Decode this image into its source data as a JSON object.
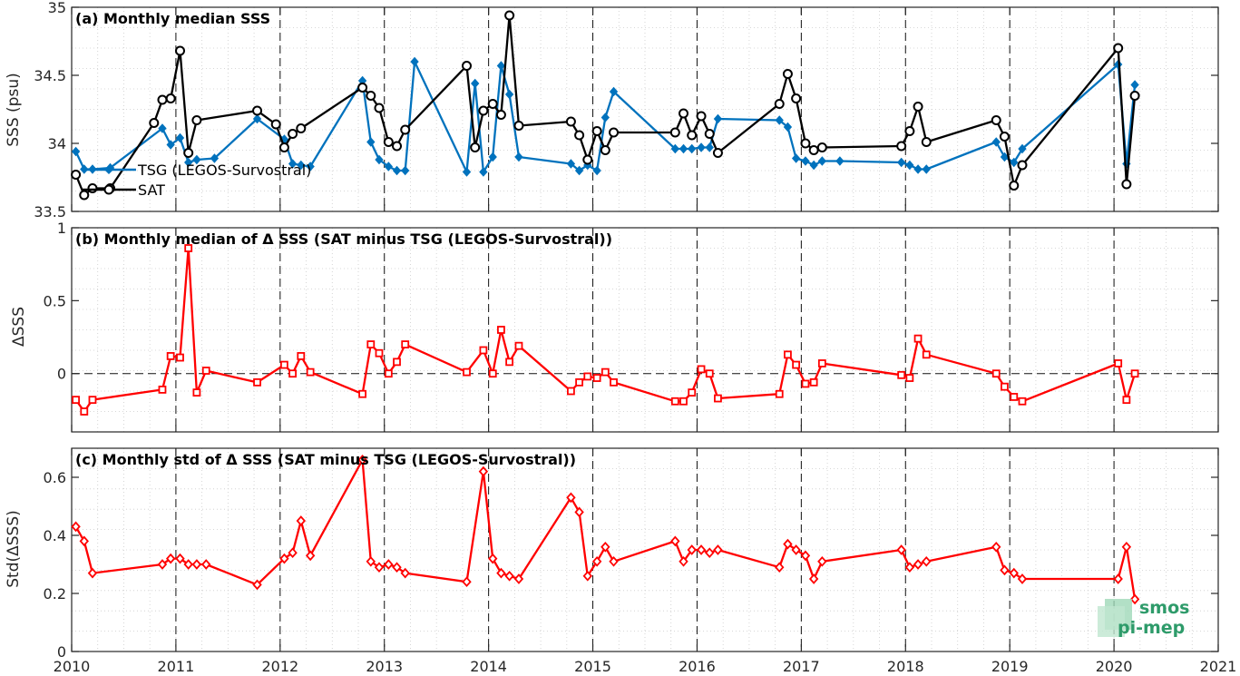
{
  "colors": {
    "tsg": "#0072BD",
    "sat": "#000000",
    "delta": "#ff0000",
    "grid": "#cccccc",
    "axis": "#262626"
  },
  "logo": {
    "line1": "smos",
    "line2": "pi-mep"
  },
  "chart_data": [
    {
      "type": "line",
      "title": "(a) Monthly median SSS",
      "ylabel": "SSS (psu)",
      "xlim": [
        2010,
        2021
      ],
      "ylim": [
        33.5,
        35
      ],
      "yticks": [
        "33.5",
        "34",
        "34.5",
        "35"
      ],
      "xticks": [],
      "legend": {
        "placement": "left-bottom",
        "entries": [
          "TSG (LEGOS-Survostral)",
          "SAT"
        ]
      },
      "series": [
        {
          "name": "TSG (LEGOS-Survostral)",
          "marker": "diamond",
          "x": [
            2010.04,
            2010.12,
            2010.2,
            2010.37,
            2010.87,
            2010.95,
            2011.04,
            2011.12,
            2011.2,
            2011.37,
            2011.78,
            2012.04,
            2012.12,
            2012.2,
            2012.29,
            2012.79,
            2012.87,
            2012.95,
            2013.04,
            2013.12,
            2013.2,
            2013.29,
            2013.79,
            2013.87,
            2013.95,
            2014.04,
            2014.12,
            2014.2,
            2014.29,
            2014.79,
            2014.87,
            2014.95,
            2015.04,
            2015.12,
            2015.2,
            2015.79,
            2015.87,
            2015.95,
            2016.04,
            2016.12,
            2016.2,
            2016.79,
            2016.87,
            2016.95,
            2017.04,
            2017.12,
            2017.2,
            2017.37,
            2017.96,
            2018.04,
            2018.12,
            2018.2,
            2018.87,
            2018.95,
            2019.04,
            2019.12,
            2020.04,
            2020.12,
            2020.2
          ],
          "y": [
            33.94,
            33.81,
            33.81,
            33.82,
            34.11,
            33.99,
            34.04,
            33.86,
            33.88,
            33.89,
            34.18,
            34.03,
            33.85,
            33.84,
            33.83,
            34.46,
            34.01,
            33.88,
            33.83,
            33.8,
            33.8,
            34.6,
            33.79,
            34.44,
            33.79,
            33.9,
            34.57,
            34.36,
            33.9,
            33.85,
            33.8,
            33.84,
            33.8,
            34.19,
            34.38,
            33.96,
            33.96,
            33.96,
            33.97,
            33.97,
            34.18,
            34.17,
            34.12,
            33.89,
            33.87,
            33.84,
            33.87,
            33.87,
            33.86,
            33.84,
            33.81,
            33.81,
            34.01,
            33.9,
            33.86,
            33.96,
            34.58,
            33.85,
            34.43
          ]
        },
        {
          "name": "SAT",
          "marker": "circle",
          "x": [
            2010.04,
            2010.12,
            2010.2,
            2010.37,
            2010.79,
            2010.87,
            2010.95,
            2011.04,
            2011.12,
            2011.2,
            2011.78,
            2011.96,
            2012.04,
            2012.12,
            2012.2,
            2012.79,
            2012.87,
            2012.95,
            2013.04,
            2013.12,
            2013.2,
            2013.79,
            2013.87,
            2013.95,
            2014.04,
            2014.12,
            2014.2,
            2014.29,
            2014.79,
            2014.87,
            2014.95,
            2015.04,
            2015.12,
            2015.2,
            2015.79,
            2015.87,
            2015.95,
            2016.04,
            2016.12,
            2016.2,
            2016.79,
            2016.87,
            2016.95,
            2017.04,
            2017.12,
            2017.2,
            2017.96,
            2018.04,
            2018.12,
            2018.2,
            2018.87,
            2018.95,
            2019.04,
            2019.12,
            2020.04,
            2020.12,
            2020.2
          ],
          "y": [
            33.77,
            33.62,
            33.67,
            33.67,
            34.15,
            34.32,
            34.33,
            34.68,
            33.93,
            34.17,
            34.24,
            34.14,
            33.97,
            34.07,
            34.11,
            34.41,
            34.35,
            34.26,
            34.01,
            33.98,
            34.1,
            34.57,
            33.97,
            34.24,
            34.29,
            34.21,
            34.94,
            34.13,
            34.16,
            34.06,
            33.88,
            34.09,
            33.95,
            34.08,
            34.08,
            34.22,
            34.06,
            34.2,
            34.07,
            33.93,
            34.29,
            34.51,
            34.33,
            34.0,
            33.95,
            33.97,
            33.98,
            34.09,
            34.27,
            34.01,
            34.17,
            34.05,
            33.69,
            33.84,
            34.7,
            33.7,
            34.35
          ]
        }
      ]
    },
    {
      "type": "line",
      "title": "(b) Monthly median of Δ SSS (SAT minus TSG (LEGOS-Survostral))",
      "ylabel": "ΔSSS",
      "xlim": [
        2010,
        2021
      ],
      "ylim": [
        -0.4,
        1
      ],
      "yticks": [
        "0",
        "0.5",
        "1"
      ],
      "xticks": [],
      "zero_line": true,
      "series": [
        {
          "marker": "square",
          "x": [
            2010.04,
            2010.12,
            2010.2,
            2010.87,
            2010.95,
            2011.04,
            2011.12,
            2011.2,
            2011.29,
            2011.78,
            2012.04,
            2012.12,
            2012.2,
            2012.29,
            2012.79,
            2012.87,
            2012.95,
            2013.04,
            2013.12,
            2013.2,
            2013.79,
            2013.95,
            2014.04,
            2014.12,
            2014.2,
            2014.29,
            2014.79,
            2014.87,
            2014.95,
            2015.04,
            2015.12,
            2015.2,
            2015.79,
            2015.87,
            2015.95,
            2016.04,
            2016.12,
            2016.2,
            2016.79,
            2016.87,
            2016.95,
            2017.04,
            2017.12,
            2017.2,
            2017.96,
            2018.04,
            2018.12,
            2018.2,
            2018.87,
            2018.95,
            2019.04,
            2019.12,
            2020.04,
            2020.12,
            2020.2
          ],
          "y": [
            -0.18,
            -0.26,
            -0.18,
            -0.11,
            0.12,
            0.11,
            0.86,
            -0.13,
            0.02,
            -0.06,
            0.06,
            0.0,
            0.12,
            0.01,
            -0.14,
            0.2,
            0.14,
            0.0,
            0.08,
            0.2,
            0.01,
            0.16,
            0.0,
            0.3,
            0.08,
            0.19,
            -0.12,
            -0.06,
            -0.02,
            -0.03,
            0.01,
            -0.06,
            -0.19,
            -0.19,
            -0.13,
            0.03,
            0.0,
            -0.17,
            -0.14,
            0.13,
            0.06,
            -0.07,
            -0.06,
            0.07,
            -0.01,
            -0.03,
            0.24,
            0.13,
            -0.0,
            -0.09,
            -0.16,
            -0.19,
            0.07,
            -0.18,
            0.0
          ]
        }
      ]
    },
    {
      "type": "line",
      "title": "(c) Monthly std of Δ SSS (SAT minus TSG (LEGOS-Survostral))",
      "ylabel": "Std(ΔSSS)",
      "xlim": [
        2010,
        2021
      ],
      "ylim": [
        0,
        0.7
      ],
      "yticks": [
        "0",
        "0.2",
        "0.4",
        "0.6"
      ],
      "xticks": [
        "2010",
        "2011",
        "2012",
        "2013",
        "2014",
        "2015",
        "2016",
        "2017",
        "2018",
        "2019",
        "2020",
        "2021"
      ],
      "series": [
        {
          "marker": "diamond",
          "x": [
            2010.04,
            2010.12,
            2010.2,
            2010.87,
            2010.95,
            2011.04,
            2011.12,
            2011.2,
            2011.29,
            2011.78,
            2012.04,
            2012.12,
            2012.2,
            2012.29,
            2012.79,
            2012.87,
            2012.95,
            2013.04,
            2013.12,
            2013.2,
            2013.79,
            2013.95,
            2014.04,
            2014.12,
            2014.2,
            2014.29,
            2014.79,
            2014.87,
            2014.95,
            2015.04,
            2015.12,
            2015.2,
            2015.79,
            2015.87,
            2015.95,
            2016.04,
            2016.12,
            2016.2,
            2016.79,
            2016.87,
            2016.95,
            2017.04,
            2017.12,
            2017.2,
            2017.96,
            2018.04,
            2018.12,
            2018.2,
            2018.87,
            2018.95,
            2019.04,
            2019.12,
            2020.04,
            2020.12,
            2020.2
          ],
          "y": [
            0.43,
            0.38,
            0.27,
            0.3,
            0.32,
            0.32,
            0.3,
            0.3,
            0.3,
            0.23,
            0.32,
            0.34,
            0.45,
            0.33,
            0.66,
            0.31,
            0.29,
            0.3,
            0.29,
            0.27,
            0.24,
            0.62,
            0.32,
            0.27,
            0.26,
            0.25,
            0.53,
            0.48,
            0.26,
            0.31,
            0.36,
            0.31,
            0.38,
            0.31,
            0.35,
            0.35,
            0.34,
            0.35,
            0.29,
            0.37,
            0.35,
            0.33,
            0.25,
            0.31,
            0.35,
            0.29,
            0.3,
            0.31,
            0.36,
            0.28,
            0.27,
            0.25,
            0.25,
            0.36,
            0.18
          ]
        }
      ]
    }
  ]
}
